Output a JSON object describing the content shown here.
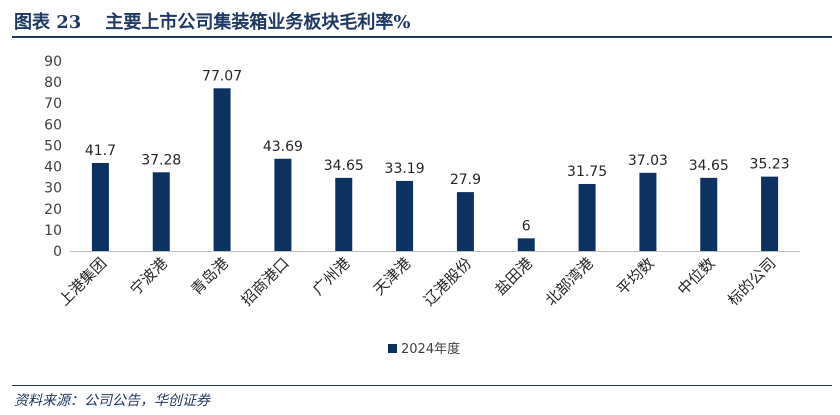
{
  "header": {
    "figure_label": "图表 23",
    "title": "主要上市公司集装箱业务板块毛利率%"
  },
  "footer": {
    "source": "资料来源：公司公告，华创证券"
  },
  "colors": {
    "bar": "#0d3260",
    "axis": "#bfbfbf",
    "title": "#1f3864"
  },
  "chart_data": {
    "type": "bar",
    "categories": [
      "上港集团",
      "宁波港",
      "青岛港",
      "招商港口",
      "广州港",
      "天津港",
      "辽港股份",
      "盐田港",
      "北部湾港",
      "平均数",
      "中位数",
      "标的公司"
    ],
    "series": [
      {
        "name": "2024年度",
        "values": [
          41.7,
          37.28,
          77.07,
          43.69,
          34.65,
          33.19,
          27.9,
          6,
          31.75,
          37.03,
          34.65,
          35.23
        ]
      }
    ],
    "data_labels": [
      "41.7",
      "37.28",
      "77.07",
      "43.69",
      "34.65",
      "33.19",
      "27.9",
      "6",
      "31.75",
      "37.03",
      "34.65",
      "35.23"
    ],
    "yticks": [
      "0",
      "10",
      "20",
      "30",
      "40",
      "50",
      "60",
      "70",
      "80",
      "90"
    ],
    "ylim": [
      0,
      90
    ],
    "grid": false,
    "legend": "bottom-center"
  }
}
